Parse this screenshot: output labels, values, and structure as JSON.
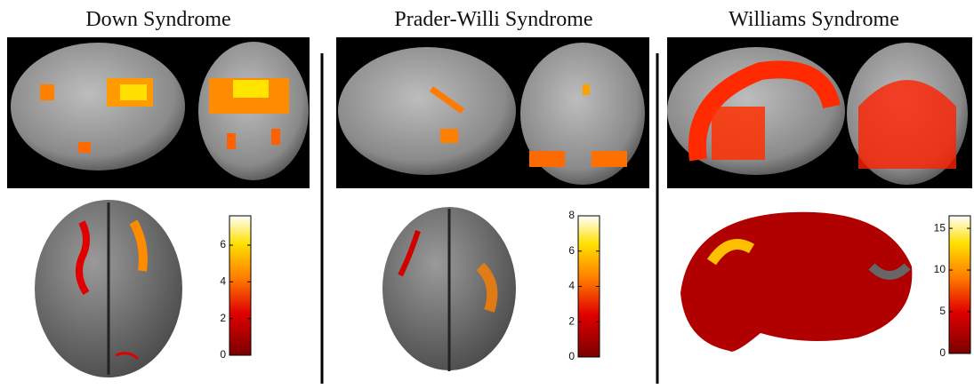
{
  "panels": [
    {
      "title": "Down Syndrome",
      "colorbar": {
        "lim": [
          0,
          7.6
        ],
        "ticks": [
          0,
          2,
          4,
          6
        ]
      }
    },
    {
      "title": "Prader-Willi Syndrome",
      "colorbar": {
        "lim": [
          0,
          8
        ],
        "ticks": [
          0,
          2,
          4,
          6,
          8
        ]
      }
    },
    {
      "title": "Williams Syndrome",
      "colorbar": {
        "lim": [
          0,
          16.5
        ],
        "ticks": [
          0,
          5,
          10,
          15
        ]
      }
    }
  ]
}
